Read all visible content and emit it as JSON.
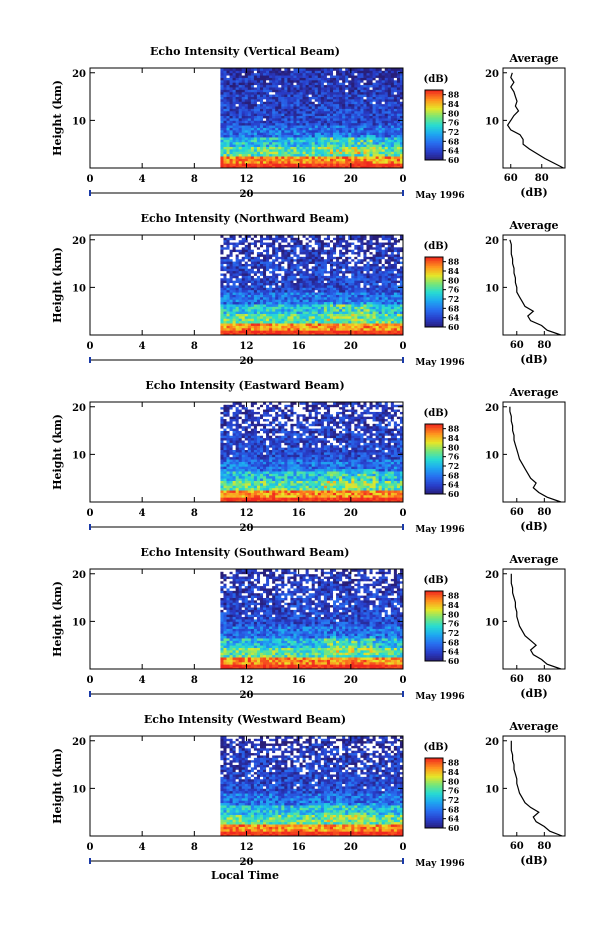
{
  "figure": {
    "xlabel_bottom": "Local Time",
    "date_label": "May 1996"
  },
  "chart_data": [
    {
      "type": "heatmap",
      "title": "Echo Intensity (Vertical Beam)",
      "ylabel": "Height (km)",
      "x_ticks": [
        "0",
        "4",
        "8",
        "12",
        "16",
        "20",
        "0"
      ],
      "y_ticks": [
        "10",
        "20"
      ],
      "date_marker": "20",
      "colorbar_label": "(dB)",
      "colorbar_ticks": [
        "60",
        "64",
        "68",
        "72",
        "76",
        "80",
        "84",
        "88"
      ],
      "data_start_hour": 10,
      "x_range": [
        0,
        24
      ],
      "y_range": [
        0,
        21
      ],
      "z_range": [
        60,
        90
      ],
      "average_profile": {
        "title": "Average",
        "xlabel": "(dB)",
        "x_ticks": [
          "60",
          "80"
        ],
        "y_ticks": [
          "10",
          "20"
        ],
        "x_range": [
          55,
          95
        ],
        "profile": [
          [
            0,
            94
          ],
          [
            2,
            82
          ],
          [
            4,
            72
          ],
          [
            5,
            68
          ],
          [
            6,
            68
          ],
          [
            7,
            66
          ],
          [
            8,
            60
          ],
          [
            9,
            58
          ],
          [
            10,
            60
          ],
          [
            11,
            62
          ],
          [
            12,
            65
          ],
          [
            13,
            63
          ],
          [
            14,
            64
          ],
          [
            15,
            63
          ],
          [
            16,
            62
          ],
          [
            17,
            60
          ],
          [
            18,
            62
          ],
          [
            19,
            60
          ],
          [
            20,
            61
          ]
        ]
      }
    },
    {
      "type": "heatmap",
      "title": "Echo Intensity (Northward Beam)",
      "ylabel": "Height (km)",
      "x_ticks": [
        "0",
        "4",
        "8",
        "12",
        "16",
        "20",
        "0"
      ],
      "y_ticks": [
        "10",
        "20"
      ],
      "date_marker": "20",
      "colorbar_label": "(dB)",
      "colorbar_ticks": [
        "60",
        "64",
        "68",
        "72",
        "76",
        "80",
        "84",
        "88"
      ],
      "data_start_hour": 10,
      "x_range": [
        0,
        24
      ],
      "y_range": [
        0,
        21
      ],
      "z_range": [
        60,
        90
      ],
      "average_profile": {
        "title": "Average",
        "xlabel": "(dB)",
        "x_ticks": [
          "60",
          "80"
        ],
        "y_ticks": [
          "10",
          "20"
        ],
        "x_range": [
          50,
          95
        ],
        "profile": [
          [
            0,
            92
          ],
          [
            1,
            82
          ],
          [
            2,
            78
          ],
          [
            3,
            70
          ],
          [
            4,
            68
          ],
          [
            5,
            72
          ],
          [
            6,
            66
          ],
          [
            7,
            64
          ],
          [
            8,
            62
          ],
          [
            9,
            60
          ],
          [
            10,
            60
          ],
          [
            11,
            59
          ],
          [
            12,
            59
          ],
          [
            13,
            58
          ],
          [
            14,
            58
          ],
          [
            15,
            57
          ],
          [
            16,
            57
          ],
          [
            17,
            56
          ],
          [
            18,
            56
          ],
          [
            19,
            56
          ],
          [
            20,
            55
          ]
        ]
      }
    },
    {
      "type": "heatmap",
      "title": "Echo Intensity (Eastward Beam)",
      "ylabel": "Height (km)",
      "x_ticks": [
        "0",
        "4",
        "8",
        "12",
        "16",
        "20",
        "0"
      ],
      "y_ticks": [
        "10",
        "20"
      ],
      "date_marker": "20",
      "colorbar_label": "(dB)",
      "colorbar_ticks": [
        "60",
        "64",
        "68",
        "72",
        "76",
        "80",
        "84",
        "88"
      ],
      "data_start_hour": 10,
      "x_range": [
        0,
        24
      ],
      "y_range": [
        0,
        21
      ],
      "z_range": [
        60,
        90
      ],
      "average_profile": {
        "title": "Average",
        "xlabel": "(dB)",
        "x_ticks": [
          "60",
          "80"
        ],
        "y_ticks": [
          "10",
          "20"
        ],
        "x_range": [
          50,
          95
        ],
        "profile": [
          [
            0,
            92
          ],
          [
            1,
            82
          ],
          [
            2,
            76
          ],
          [
            3,
            72
          ],
          [
            4,
            74
          ],
          [
            5,
            70
          ],
          [
            6,
            68
          ],
          [
            7,
            66
          ],
          [
            8,
            64
          ],
          [
            9,
            62
          ],
          [
            10,
            61
          ],
          [
            11,
            60
          ],
          [
            12,
            59
          ],
          [
            13,
            58
          ],
          [
            14,
            58
          ],
          [
            15,
            57
          ],
          [
            16,
            57
          ],
          [
            17,
            56
          ],
          [
            18,
            56
          ],
          [
            19,
            55
          ],
          [
            20,
            55
          ]
        ]
      }
    },
    {
      "type": "heatmap",
      "title": "Echo Intensity (Southward Beam)",
      "ylabel": "Height (km)",
      "x_ticks": [
        "0",
        "4",
        "8",
        "12",
        "16",
        "20",
        "0"
      ],
      "y_ticks": [
        "10",
        "20"
      ],
      "date_marker": "20",
      "colorbar_label": "(dB)",
      "colorbar_ticks": [
        "60",
        "64",
        "68",
        "72",
        "76",
        "80",
        "84",
        "88"
      ],
      "data_start_hour": 10,
      "x_range": [
        0,
        24
      ],
      "y_range": [
        0,
        21
      ],
      "z_range": [
        60,
        90
      ],
      "average_profile": {
        "title": "Average",
        "xlabel": "(dB)",
        "x_ticks": [
          "60",
          "80"
        ],
        "y_ticks": [
          "10",
          "20"
        ],
        "x_range": [
          50,
          95
        ],
        "profile": [
          [
            0,
            92
          ],
          [
            1,
            82
          ],
          [
            2,
            78
          ],
          [
            3,
            72
          ],
          [
            4,
            70
          ],
          [
            5,
            74
          ],
          [
            6,
            70
          ],
          [
            7,
            66
          ],
          [
            8,
            64
          ],
          [
            9,
            62
          ],
          [
            10,
            61
          ],
          [
            11,
            60
          ],
          [
            12,
            60
          ],
          [
            13,
            59
          ],
          [
            14,
            59
          ],
          [
            15,
            58
          ],
          [
            16,
            57
          ],
          [
            17,
            57
          ],
          [
            18,
            56
          ],
          [
            19,
            56
          ],
          [
            20,
            56
          ]
        ]
      }
    },
    {
      "type": "heatmap",
      "title": "Echo Intensity (Westward Beam)",
      "ylabel": "Height (km)",
      "x_ticks": [
        "0",
        "4",
        "8",
        "12",
        "16",
        "20",
        "0"
      ],
      "y_ticks": [
        "10",
        "20"
      ],
      "date_marker": "20",
      "colorbar_label": "(dB)",
      "colorbar_ticks": [
        "60",
        "64",
        "68",
        "72",
        "76",
        "80",
        "84",
        "88"
      ],
      "data_start_hour": 10,
      "x_range": [
        0,
        24
      ],
      "y_range": [
        0,
        21
      ],
      "z_range": [
        60,
        90
      ],
      "average_profile": {
        "title": "Average",
        "xlabel": "(dB)",
        "x_ticks": [
          "60",
          "80"
        ],
        "y_ticks": [
          "10",
          "20"
        ],
        "x_range": [
          50,
          95
        ],
        "profile": [
          [
            0,
            93
          ],
          [
            1,
            84
          ],
          [
            2,
            80
          ],
          [
            3,
            74
          ],
          [
            4,
            72
          ],
          [
            5,
            76
          ],
          [
            6,
            70
          ],
          [
            7,
            66
          ],
          [
            8,
            64
          ],
          [
            9,
            62
          ],
          [
            10,
            61
          ],
          [
            11,
            60
          ],
          [
            12,
            60
          ],
          [
            13,
            59
          ],
          [
            14,
            58
          ],
          [
            15,
            58
          ],
          [
            16,
            57
          ],
          [
            17,
            57
          ],
          [
            18,
            56
          ],
          [
            19,
            56
          ],
          [
            20,
            56
          ]
        ]
      }
    }
  ]
}
